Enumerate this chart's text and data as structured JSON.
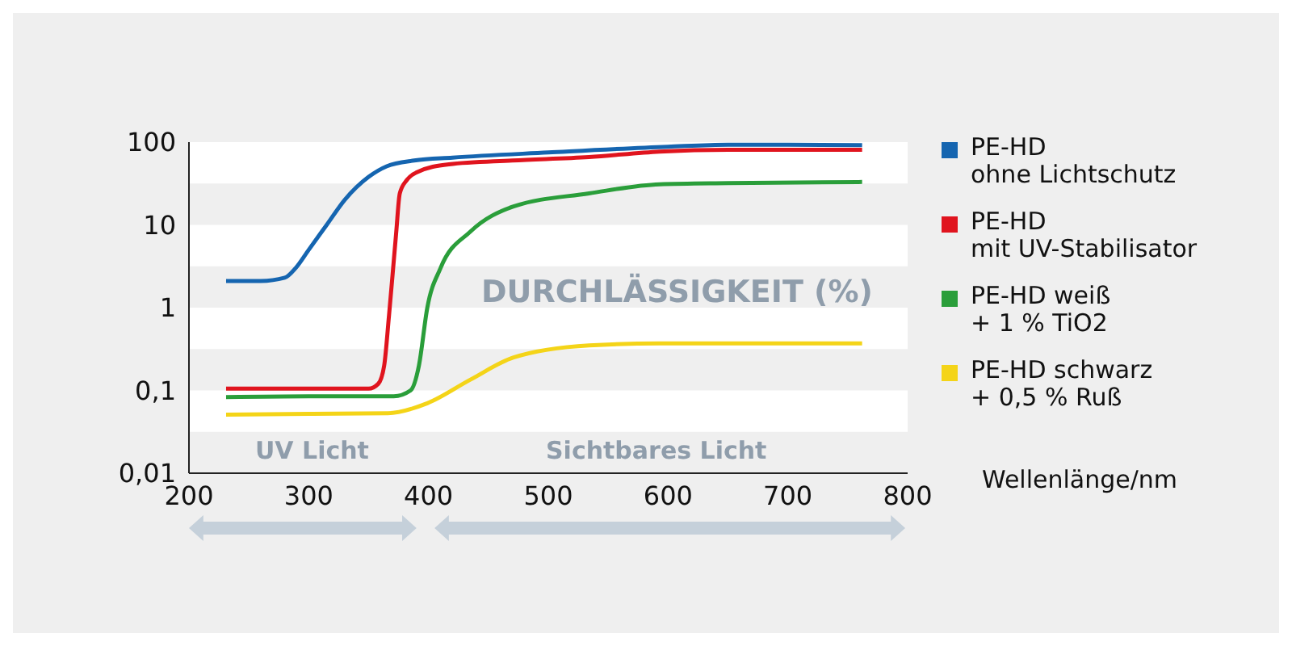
{
  "chart_data": {
    "type": "line",
    "annotations": [
      "UV Licht",
      "Sichtbares Licht",
      "DURCHLÄSSIGKEIT (%)",
      "Wellenlänge/nm"
    ],
    "log": "y",
    "xlim": [
      200,
      800
    ],
    "xticks": [
      200,
      300,
      400,
      500,
      600,
      700,
      800
    ],
    "ylim": [
      0.01,
      100
    ],
    "yticks": [
      {
        "value": 0.01,
        "label": "0,01"
      },
      {
        "value": 0.1,
        "label": "0,1"
      },
      1,
      10,
      100
    ],
    "grid": false,
    "legend": "right",
    "marker": "none",
    "line_style": "solid",
    "bands": [
      {
        "axis": "y",
        "from": 31.6,
        "to": 100,
        "color": "#ffffff"
      },
      {
        "axis": "y",
        "from": 3.16,
        "to": 10,
        "color": "#ffffff"
      },
      {
        "axis": "y",
        "from": 0.316,
        "to": 1,
        "color": "#ffffff"
      },
      {
        "axis": "y",
        "from": 0.0316,
        "to": 0.1,
        "color": "#ffffff"
      }
    ],
    "series": [
      {
        "name": "PE-HD\nohne Lichtschutz",
        "color": "#1565b0",
        "x": [
          231,
          260,
          280,
          289,
          300,
          315,
          330,
          350,
          365,
          388,
          420,
          500,
          600,
          650,
          700,
          762
        ],
        "values": [
          2.1,
          2.1,
          2.3,
          3,
          5,
          10,
          20,
          38,
          51,
          60,
          65,
          75,
          88,
          93,
          93,
          92
        ]
      },
      {
        "name": "PE-HD\nmit UV-Stabilisator",
        "color": "#e0141e",
        "x": [
          231,
          300,
          350,
          358,
          363,
          367,
          370,
          373,
          376,
          382,
          390,
          417,
          470,
          534,
          593,
          650,
          762
        ],
        "values": [
          0.105,
          0.105,
          0.105,
          0.12,
          0.2,
          0.8,
          2.5,
          8,
          24,
          35,
          43,
          54,
          60,
          66,
          77,
          81,
          81
        ]
      },
      {
        "name": "PE-HD weiß\n+ 1 % TiO2",
        "color": "#2a9e3a",
        "x": [
          231,
          300,
          371,
          385,
          392,
          399,
          410,
          435,
          471,
          534,
          593,
          650,
          762
        ],
        "values": [
          0.083,
          0.085,
          0.085,
          0.1,
          0.2,
          1,
          3,
          8.3,
          16.7,
          24,
          31,
          32,
          33
        ]
      },
      {
        "name": "PE-HD schwarz\n+ 0,5 % Ruß",
        "color": "#f4d418",
        "x": [
          231,
          300,
          366,
          399,
          435,
          471,
          534,
          593,
          650,
          700,
          762
        ],
        "values": [
          0.051,
          0.052,
          0.053,
          0.07,
          0.135,
          0.25,
          0.35,
          0.37,
          0.37,
          0.37,
          0.37
        ]
      }
    ]
  }
}
